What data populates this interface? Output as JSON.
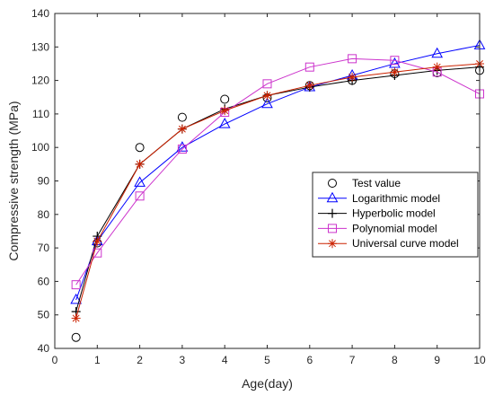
{
  "chart_data": {
    "type": "line",
    "xlabel": "Age(day)",
    "ylabel": "Compressive strength (MPa)",
    "xlim": [
      0,
      10
    ],
    "ylim": [
      40,
      140
    ],
    "xticks": [
      "0",
      "1",
      "2",
      "3",
      "4",
      "5",
      "6",
      "7",
      "8",
      "9",
      "10"
    ],
    "yticks": [
      "40",
      "50",
      "60",
      "70",
      "80",
      "90",
      "100",
      "110",
      "120",
      "130",
      "140"
    ],
    "grid": false,
    "legend_position": "lower-right",
    "x": [
      0.5,
      1,
      2,
      3,
      4,
      5,
      6,
      7,
      8,
      9,
      10
    ],
    "series": [
      {
        "name": "Test value",
        "marker": "circle",
        "line": false,
        "color": "#000000",
        "values": [
          43.3,
          71.5,
          100.0,
          109.0,
          114.4,
          114.8,
          118.5,
          120.0,
          122.0,
          122.3,
          123.0
        ]
      },
      {
        "name": "Logarithmic model",
        "marker": "triangle",
        "line": true,
        "color": "#0000ff",
        "values": [
          54.5,
          72.0,
          89.5,
          100.0,
          107.0,
          113.0,
          118.0,
          121.5,
          125.0,
          128.0,
          130.5
        ]
      },
      {
        "name": "Hyperbolic model",
        "marker": "plus",
        "line": true,
        "color": "#000000",
        "values": [
          51.0,
          73.5,
          95.0,
          105.5,
          111.5,
          115.5,
          118.0,
          120.0,
          121.5,
          123.0,
          124.0
        ]
      },
      {
        "name": "Polynomial model",
        "marker": "square",
        "line": true,
        "color": "#cc33cc",
        "values": [
          59.0,
          68.5,
          85.5,
          99.5,
          110.5,
          119.0,
          124.0,
          126.5,
          126.0,
          122.5,
          116.0
        ]
      },
      {
        "name": "Universal curve model",
        "marker": "star",
        "line": true,
        "color": "#cc2200",
        "values": [
          49.0,
          72.0,
          95.0,
          105.5,
          111.0,
          115.5,
          118.5,
          121.0,
          122.5,
          124.0,
          125.0
        ]
      }
    ]
  }
}
